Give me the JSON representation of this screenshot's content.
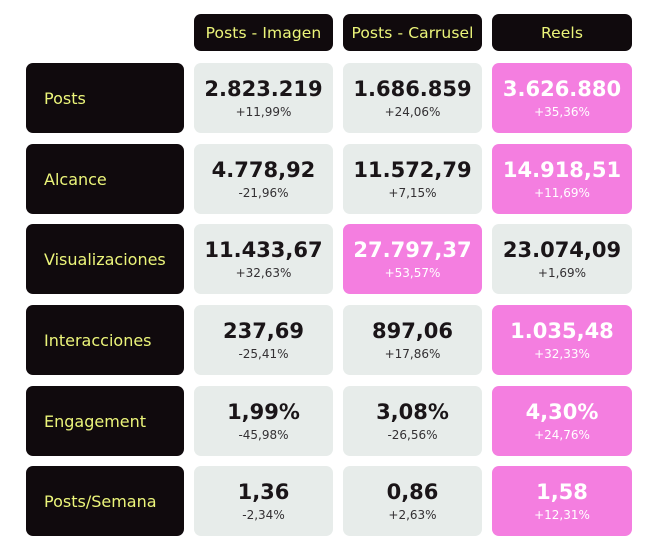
{
  "columns": [
    "Posts - Imagen",
    "Posts - Carrusel",
    "Reels"
  ],
  "rows": [
    {
      "label": "Posts",
      "cells": [
        {
          "value": "2.823.219",
          "change": "+11,99%",
          "highlight": false
        },
        {
          "value": "1.686.859",
          "change": "+24,06%",
          "highlight": false
        },
        {
          "value": "3.626.880",
          "change": "+35,36%",
          "highlight": true
        }
      ]
    },
    {
      "label": "Alcance",
      "cells": [
        {
          "value": "4.778,92",
          "change": "-21,96%",
          "highlight": false
        },
        {
          "value": "11.572,79",
          "change": "+7,15%",
          "highlight": false
        },
        {
          "value": "14.918,51",
          "change": "+11,69%",
          "highlight": true
        }
      ]
    },
    {
      "label": "Visualizaciones",
      "cells": [
        {
          "value": "11.433,67",
          "change": "+32,63%",
          "highlight": false
        },
        {
          "value": "27.797,37",
          "change": "+53,57%",
          "highlight": true
        },
        {
          "value": "23.074,09",
          "change": "+1,69%",
          "highlight": false
        }
      ]
    },
    {
      "label": "Interacciones",
      "cells": [
        {
          "value": "237,69",
          "change": "-25,41%",
          "highlight": false
        },
        {
          "value": "897,06",
          "change": "+17,86%",
          "highlight": false
        },
        {
          "value": "1.035,48",
          "change": "+32,33%",
          "highlight": true
        }
      ]
    },
    {
      "label": "Engagement",
      "cells": [
        {
          "value": "1,99%",
          "change": "-45,98%",
          "highlight": false
        },
        {
          "value": "3,08%",
          "change": "-26,56%",
          "highlight": false
        },
        {
          "value": "4,30%",
          "change": "+24,76%",
          "highlight": true
        }
      ]
    },
    {
      "label": "Posts/Semana",
      "cells": [
        {
          "value": "1,36",
          "change": "-2,34%",
          "highlight": false
        },
        {
          "value": "0,86",
          "change": "+2,63%",
          "highlight": false
        },
        {
          "value": "1,58",
          "change": "+12,31%",
          "highlight": true
        }
      ]
    }
  ],
  "colors": {
    "header_bg": "#100a0d",
    "header_text": "#ecf57a",
    "cell_bg": "#e7ecea",
    "highlight_bg": "#f47ee0"
  }
}
